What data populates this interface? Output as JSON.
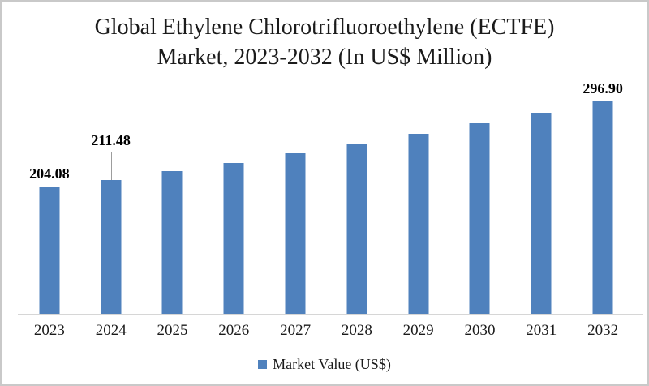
{
  "title": {
    "line1": "Global Ethylene Chlorotrifluoroethylene (ECTFE)",
    "line2": "Market, 2023-2032 (In US$ Million)"
  },
  "chart_data": {
    "type": "bar",
    "title": "Global Ethylene Chlorotrifluoroethylene (ECTFE) Market, 2023-2032 (In US$ Million)",
    "categories": [
      "2023",
      "2024",
      "2025",
      "2026",
      "2027",
      "2028",
      "2029",
      "2030",
      "2031",
      "2032"
    ],
    "series": [
      {
        "name": "Market Value (US$)",
        "values": [
          204.08,
          211.48,
          220.64,
          230.2,
          240.18,
          250.58,
          261.44,
          272.76,
          284.58,
          296.9
        ]
      }
    ],
    "labeled_points": [
      {
        "category": "2023",
        "label": "204.08",
        "leader_line": false
      },
      {
        "category": "2024",
        "label": "211.48",
        "leader_line": true
      },
      {
        "category": "2032",
        "label": "296.90",
        "leader_line": false
      }
    ],
    "values_estimated_from_bar_heights": [
      "2025",
      "2026",
      "2027",
      "2028",
      "2029",
      "2030",
      "2031"
    ],
    "xlabel": "",
    "ylabel": "",
    "ylim": [
      64,
      318
    ],
    "grid": false,
    "value_axis_visible": false,
    "legend_position": "bottom",
    "bar_color": "#4f81bd"
  },
  "legend": {
    "label": "Market Value (US$)",
    "marker_color": "#4f81bd"
  },
  "colors": {
    "bar": "#4f81bd",
    "axis_line": "#d6d6d6",
    "leader_line": "#9d9d9d",
    "border": "#c9c9c9",
    "text": "#1b1b1b",
    "background": "#ffffff"
  }
}
